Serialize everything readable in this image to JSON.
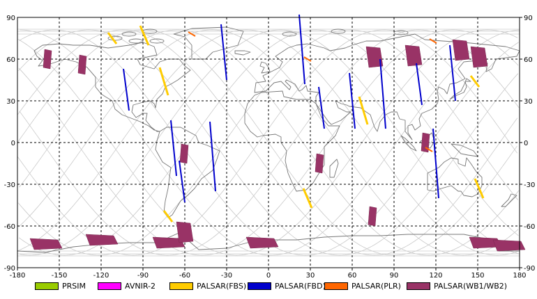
{
  "map": {
    "x_ticks": [
      "-180",
      "-150",
      "-120",
      "-90",
      "-60",
      "-30",
      "0",
      "30",
      "60",
      "90",
      "120",
      "150",
      "180"
    ],
    "y_ticks_left": [
      "90",
      "60",
      "30",
      "0",
      "-30",
      "-60",
      "-90"
    ],
    "y_ticks_right": [
      "90",
      "60",
      "30",
      "0",
      "-30",
      "-60",
      "-90"
    ]
  },
  "legend": [
    {
      "label": "PRSIM",
      "color": "#99cc00"
    },
    {
      "label": "AVNIR-2",
      "color": "#ff00ff"
    },
    {
      "label": "PALSAR(FBS)",
      "color": "#ffcc00"
    },
    {
      "label": "PALSAR(FBD)",
      "color": "#0000cc"
    },
    {
      "label": "PALSAR(PLR)",
      "color": "#ff6600"
    },
    {
      "label": "PALSAR(WB1/WB2)",
      "color": "#993366"
    }
  ],
  "chart_data": {
    "type": "map",
    "projection": "equirectangular",
    "xlim": [
      -180,
      180
    ],
    "ylim": [
      -90,
      90
    ],
    "grid": true,
    "series": [
      {
        "name": "PALSAR(WB1/WB2)",
        "color": "#993366",
        "swaths": [
          {
            "lon": -158,
            "lat": 60
          },
          {
            "lon": -133,
            "lat": 56
          },
          {
            "lon": -160,
            "lat": -73
          },
          {
            "lon": -120,
            "lat": -70
          },
          {
            "lon": -72,
            "lat": -72
          },
          {
            "lon": -61,
            "lat": -64
          },
          {
            "lon": -60,
            "lat": -8
          },
          {
            "lon": -5,
            "lat": -72
          },
          {
            "lon": 37,
            "lat": -15
          },
          {
            "lon": 75,
            "lat": -53
          },
          {
            "lon": 75,
            "lat": 62
          },
          {
            "lon": 103,
            "lat": 63
          },
          {
            "lon": 113,
            "lat": 0
          },
          {
            "lon": 137,
            "lat": 67
          },
          {
            "lon": 150,
            "lat": 62
          },
          {
            "lon": 155,
            "lat": -72
          },
          {
            "lon": 172,
            "lat": -74
          }
        ]
      },
      {
        "name": "PALSAR(FBD)",
        "color": "#0000cc",
        "swaths": [
          {
            "lon": -102,
            "lat": 38
          },
          {
            "lon": -68,
            "lat": -4
          },
          {
            "lon": -40,
            "lat": -10
          },
          {
            "lon": -62,
            "lat": -28
          },
          {
            "lon": -32,
            "lat": 65
          },
          {
            "lon": 24,
            "lat": 67
          },
          {
            "lon": 38,
            "lat": 25
          },
          {
            "lon": 60,
            "lat": 30
          },
          {
            "lon": 82,
            "lat": 35
          },
          {
            "lon": 108,
            "lat": 42
          },
          {
            "lon": 132,
            "lat": 50
          },
          {
            "lon": 120,
            "lat": -15
          }
        ]
      },
      {
        "name": "PALSAR(FBS)",
        "color": "#ffcc00",
        "swaths": [
          {
            "lon": -112,
            "lat": 75
          },
          {
            "lon": -89,
            "lat": 77
          },
          {
            "lon": -75,
            "lat": 44
          },
          {
            "lon": -72,
            "lat": -53
          },
          {
            "lon": 28,
            "lat": -40
          },
          {
            "lon": 68,
            "lat": 23
          },
          {
            "lon": 148,
            "lat": 44
          },
          {
            "lon": 151,
            "lat": -33
          }
        ]
      },
      {
        "name": "PALSAR(PLR)",
        "color": "#ff6600",
        "swaths": [
          {
            "lon": -55,
            "lat": 78
          },
          {
            "lon": 28,
            "lat": 60
          },
          {
            "lon": 118,
            "lat": 73
          },
          {
            "lon": 115,
            "lat": -5
          }
        ]
      }
    ]
  }
}
